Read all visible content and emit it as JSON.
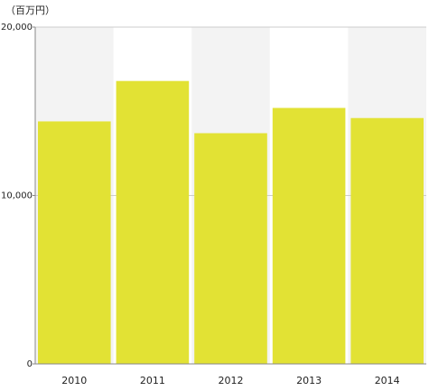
{
  "chart_data": {
    "type": "bar",
    "y_axis_label": "（百万円）",
    "categories": [
      "2010",
      "2011",
      "2012",
      "2013",
      "2014"
    ],
    "values": [
      14400,
      16800,
      13700,
      15200,
      14600
    ],
    "color": "#e2e234",
    "ylim": [
      0,
      20000
    ],
    "yticks": [
      0,
      {
        "value": 10000,
        "label": "10,000"
      },
      {
        "value": 20000,
        "label": "20,000"
      }
    ],
    "grid": true
  }
}
